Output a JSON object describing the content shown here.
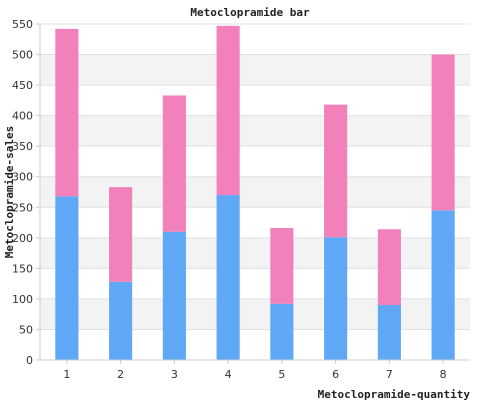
{
  "chart_data": {
    "type": "bar",
    "stacked": true,
    "title": "Metoclopramide bar",
    "xlabel": "Metoclopramide-quantity",
    "ylabel": "Metoclopramide-sales",
    "categories": [
      "1",
      "2",
      "3",
      "4",
      "5",
      "6",
      "7",
      "8"
    ],
    "ylim": [
      0,
      550
    ],
    "yticks": [
      0,
      50,
      100,
      150,
      200,
      250,
      300,
      350,
      400,
      450,
      500,
      550
    ],
    "grid": true,
    "banded_background": true,
    "legend": "none",
    "series": [
      {
        "values": [
          268,
          128,
          210,
          270,
          92,
          201,
          90,
          245
        ],
        "color": "#5fa8f5"
      },
      {
        "values": [
          274,
          155,
          223,
          277,
          124,
          217,
          124,
          255
        ],
        "color": "#f280ba"
      }
    ]
  }
}
